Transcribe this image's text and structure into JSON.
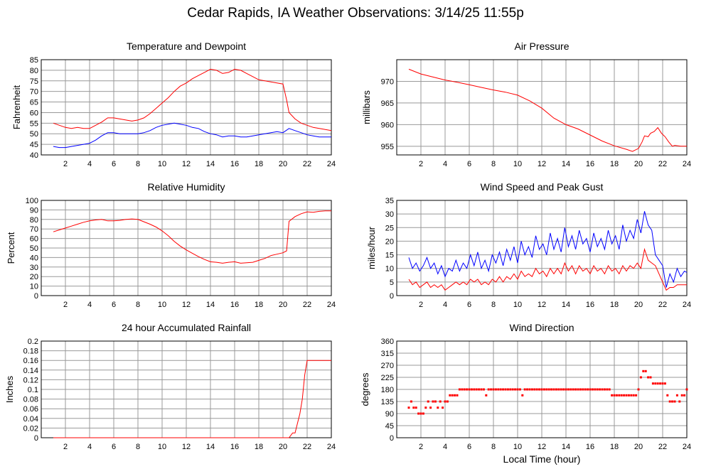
{
  "title": "Cedar Rapids, IA Weather Observations: 3/14/25 11:55p",
  "xlabel": "Local Time (hour)",
  "x_ticks": [
    "2",
    "4",
    "6",
    "8",
    "10",
    "12",
    "14",
    "16",
    "18",
    "20",
    "22",
    "24"
  ],
  "colors": {
    "red": "#ff0000",
    "blue": "#0000ff",
    "grid": "#999999"
  },
  "chart_data": [
    {
      "type": "line",
      "title": "Temperature and Dewpoint",
      "ylabel": "Fahrenheit",
      "xlim": [
        0,
        24
      ],
      "ylim": [
        40,
        85
      ],
      "yticks": [
        40,
        45,
        50,
        55,
        60,
        65,
        70,
        75,
        80,
        85
      ],
      "grid": true,
      "series": [
        {
          "color": "#ff0000",
          "x": [
            1,
            1.5,
            2,
            2.5,
            3,
            3.5,
            4,
            4.5,
            5,
            5.5,
            6,
            6.5,
            7,
            7.5,
            8,
            8.5,
            9,
            9.5,
            10,
            10.5,
            11,
            11.5,
            12,
            12.5,
            13,
            13.5,
            14,
            14.5,
            15,
            15.5,
            16,
            16.5,
            17,
            17.5,
            18,
            18.5,
            19,
            19.5,
            20,
            20.3,
            20.5,
            21,
            21.5,
            22,
            22.5,
            23,
            23.5,
            24
          ],
          "y": [
            55,
            54,
            53,
            52.5,
            53,
            52.5,
            52.5,
            54,
            55.5,
            57.5,
            57.5,
            57,
            56.5,
            56,
            56.5,
            57.5,
            59.5,
            62,
            64.5,
            67,
            70,
            72.5,
            74,
            76,
            77.5,
            79,
            80.5,
            80,
            78.5,
            79,
            80.5,
            80,
            78.5,
            77,
            75.5,
            75,
            74.5,
            74,
            73.5,
            66,
            60,
            57,
            55,
            54,
            53,
            52.5,
            52,
            51.5
          ]
        },
        {
          "color": "#0000ff",
          "x": [
            1,
            1.5,
            2,
            2.5,
            3,
            3.5,
            4,
            4.5,
            5,
            5.5,
            6,
            6.5,
            7,
            7.5,
            8,
            8.5,
            9,
            9.5,
            10,
            10.5,
            11,
            11.5,
            12,
            12.5,
            13,
            13.5,
            14,
            14.5,
            15,
            15.5,
            16,
            16.5,
            17,
            17.5,
            18,
            18.5,
            19,
            19.5,
            20,
            20.5,
            21,
            21.5,
            22,
            22.5,
            23,
            23.5,
            24
          ],
          "y": [
            44,
            43.5,
            43.5,
            44,
            44.5,
            45,
            45.5,
            47,
            49,
            50.5,
            50.5,
            50,
            50,
            50,
            50,
            50.5,
            51.5,
            53,
            54,
            54.5,
            55,
            54.5,
            54,
            53,
            52.5,
            51,
            50,
            49.5,
            48.5,
            49,
            49,
            48.5,
            48.5,
            49,
            49.5,
            50,
            50.5,
            51,
            50.5,
            52.5,
            51.5,
            50.5,
            49.5,
            49,
            48.5,
            48.5,
            48.5
          ]
        }
      ]
    },
    {
      "type": "line",
      "title": "Air Pressure",
      "ylabel": "millibars",
      "xlim": [
        0,
        24
      ],
      "ylim": [
        953,
        975
      ],
      "yticks": [
        955,
        960,
        965,
        970
      ],
      "grid": true,
      "series": [
        {
          "color": "#ff0000",
          "x": [
            1,
            2,
            3,
            4,
            5,
            6,
            7,
            8,
            9,
            10,
            11,
            12,
            13,
            14,
            15,
            16,
            17,
            18,
            19,
            19.5,
            20,
            20.3,
            20.5,
            20.8,
            21,
            21.3,
            21.6,
            21.9,
            22.2,
            22.5,
            22.8,
            23,
            23.5,
            24
          ],
          "y": [
            972.8,
            971.7,
            971,
            970.3,
            969.8,
            969.2,
            968.6,
            968,
            967.5,
            966.8,
            965.5,
            963.8,
            961.5,
            960,
            959,
            957.6,
            956.2,
            955.1,
            954.3,
            953.8,
            954.5,
            956,
            957.4,
            957.2,
            958,
            958.4,
            959.3,
            958,
            957.2,
            956,
            955,
            955.2,
            955,
            955
          ]
        }
      ]
    },
    {
      "type": "line",
      "title": "Relative Humidity",
      "ylabel": "Percent",
      "xlim": [
        0,
        24
      ],
      "ylim": [
        0,
        100
      ],
      "yticks": [
        0,
        10,
        20,
        30,
        40,
        50,
        60,
        70,
        80,
        90,
        100
      ],
      "grid": true,
      "series": [
        {
          "color": "#ff0000",
          "x": [
            1,
            1.5,
            2,
            2.5,
            3,
            3.5,
            4,
            4.5,
            5,
            5.5,
            6,
            6.5,
            7,
            7.5,
            8,
            8.5,
            9,
            9.5,
            10,
            10.5,
            11,
            11.5,
            12,
            12.5,
            13,
            13.5,
            14,
            14.5,
            15,
            15.5,
            16,
            16.5,
            17,
            17.5,
            18,
            18.5,
            19,
            19.5,
            20,
            20.3,
            20.5,
            21,
            21.5,
            22,
            22.5,
            23,
            23.5,
            24
          ],
          "y": [
            67,
            69,
            71,
            73,
            75,
            77,
            78.5,
            79.5,
            80,
            78.5,
            78.5,
            79,
            80,
            80.5,
            80,
            77.5,
            75,
            72,
            68,
            63,
            57,
            52,
            48,
            44.5,
            41,
            38,
            35.5,
            35,
            34,
            35,
            35.5,
            34,
            34.5,
            35,
            37,
            39,
            42,
            43.5,
            45,
            47,
            78,
            83,
            86,
            88,
            87.5,
            88.5,
            89,
            89
          ]
        }
      ]
    },
    {
      "type": "line",
      "title": "Wind Speed and Peak Gust",
      "ylabel": "miles/hour",
      "xlim": [
        0,
        24
      ],
      "ylim": [
        0,
        35
      ],
      "yticks": [
        0,
        5,
        10,
        15,
        20,
        25,
        30,
        35
      ],
      "grid": true,
      "series": [
        {
          "color": "#0000ff",
          "x": [
            1,
            1.3,
            1.6,
            1.9,
            2.2,
            2.5,
            2.8,
            3.1,
            3.4,
            3.7,
            4,
            4.3,
            4.6,
            4.9,
            5.2,
            5.5,
            5.8,
            6.1,
            6.4,
            6.7,
            7,
            7.3,
            7.6,
            7.9,
            8.2,
            8.5,
            8.8,
            9.1,
            9.4,
            9.7,
            10,
            10.3,
            10.6,
            10.9,
            11.2,
            11.5,
            11.8,
            12.1,
            12.4,
            12.7,
            13,
            13.3,
            13.6,
            13.9,
            14.2,
            14.5,
            14.8,
            15.1,
            15.4,
            15.7,
            16,
            16.3,
            16.6,
            16.9,
            17.2,
            17.5,
            17.8,
            18.1,
            18.4,
            18.7,
            19,
            19.3,
            19.6,
            19.9,
            20.2,
            20.5,
            20.8,
            21.1,
            21.4,
            21.7,
            22,
            22.3,
            22.6,
            22.9,
            23.2,
            23.5,
            23.8,
            24
          ],
          "y": [
            14,
            10,
            12,
            9,
            11,
            14,
            10,
            12,
            8,
            11,
            7,
            10,
            9,
            13,
            9,
            12,
            10,
            15,
            11,
            16,
            10,
            13,
            9,
            15,
            12,
            16,
            11,
            17,
            13,
            18,
            12,
            20,
            15,
            18,
            14,
            22,
            17,
            19,
            15,
            23,
            17,
            21,
            16,
            25,
            18,
            22,
            17,
            24,
            19,
            21,
            16,
            23,
            18,
            21,
            17,
            24,
            19,
            22,
            17,
            26,
            20,
            24,
            21,
            28,
            23,
            31,
            26,
            24,
            15,
            13,
            11,
            3,
            8,
            5,
            10,
            7,
            9,
            8.5
          ]
        },
        {
          "color": "#ff0000",
          "x": [
            1,
            1.3,
            1.6,
            1.9,
            2.2,
            2.5,
            2.8,
            3.1,
            3.4,
            3.7,
            4,
            4.3,
            4.6,
            4.9,
            5.2,
            5.5,
            5.8,
            6.1,
            6.4,
            6.7,
            7,
            7.3,
            7.6,
            7.9,
            8.2,
            8.5,
            8.8,
            9.1,
            9.4,
            9.7,
            10,
            10.3,
            10.6,
            10.9,
            11.2,
            11.5,
            11.8,
            12.1,
            12.4,
            12.7,
            13,
            13.3,
            13.6,
            13.9,
            14.2,
            14.5,
            14.8,
            15.1,
            15.4,
            15.7,
            16,
            16.3,
            16.6,
            16.9,
            17.2,
            17.5,
            17.8,
            18.1,
            18.4,
            18.7,
            19,
            19.3,
            19.6,
            19.9,
            20.2,
            20.5,
            20.8,
            21.1,
            21.4,
            21.7,
            22,
            22.3,
            22.6,
            22.9,
            23.2,
            23.5,
            23.8,
            24
          ],
          "y": [
            6,
            4,
            5,
            3,
            4,
            5,
            3,
            4,
            3,
            4,
            2,
            3,
            4,
            5,
            4,
            5,
            4,
            6,
            5,
            6,
            4,
            5,
            4,
            6,
            5,
            7,
            5,
            7,
            6,
            8,
            6,
            9,
            7,
            8,
            7,
            10,
            8,
            9,
            7,
            10,
            8,
            10,
            8,
            12,
            9,
            11,
            8,
            11,
            9,
            10,
            8,
            11,
            9,
            10,
            8,
            11,
            9,
            10,
            8,
            11,
            9,
            11,
            10,
            12,
            10,
            17,
            13,
            12,
            11,
            8,
            5,
            2,
            3,
            3,
            4,
            4,
            4,
            4
          ]
        }
      ]
    },
    {
      "type": "line",
      "title": "24 hour Accumulated Rainfall",
      "ylabel": "Inches",
      "xlim": [
        0,
        24
      ],
      "ylim": [
        0,
        0.2
      ],
      "yticks": [
        0.0,
        0.02,
        0.04,
        0.06,
        0.08,
        0.1,
        0.12,
        0.14,
        0.16,
        0.18,
        0.2
      ],
      "grid": true,
      "series": [
        {
          "color": "#ff0000",
          "x": [
            1,
            20.5,
            20.8,
            21,
            21.2,
            21.4,
            21.6,
            21.8,
            22,
            23,
            24
          ],
          "y": [
            0,
            0,
            0.01,
            0.01,
            0.03,
            0.05,
            0.08,
            0.13,
            0.16,
            0.16,
            0.16
          ]
        }
      ]
    },
    {
      "type": "scatter",
      "title": "Wind Direction",
      "ylabel": "degrees",
      "xlim": [
        0,
        24
      ],
      "ylim": [
        0,
        360
      ],
      "yticks": [
        0,
        45,
        90,
        135,
        180,
        225,
        270,
        315,
        360
      ],
      "grid": true,
      "series": [
        {
          "color": "#ff0000",
          "x": [
            1,
            1.2,
            1.4,
            1.6,
            1.8,
            2,
            2.2,
            2.4,
            2.6,
            2.8,
            3,
            3.2,
            3.4,
            3.6,
            3.8,
            4,
            4.2,
            4.4,
            4.6,
            4.8,
            5,
            5.2,
            5.4,
            5.6,
            5.8,
            6,
            6.2,
            6.4,
            6.6,
            6.8,
            7,
            7.2,
            7.4,
            7.6,
            7.8,
            8,
            8.2,
            8.4,
            8.6,
            8.8,
            9,
            9.2,
            9.4,
            9.6,
            9.8,
            10,
            10.2,
            10.4,
            10.6,
            10.8,
            11,
            11.2,
            11.4,
            11.6,
            11.8,
            12,
            12.2,
            12.4,
            12.6,
            12.8,
            13,
            13.2,
            13.4,
            13.6,
            13.8,
            14,
            14.2,
            14.4,
            14.6,
            14.8,
            15,
            15.2,
            15.4,
            15.6,
            15.8,
            16,
            16.2,
            16.4,
            16.6,
            16.8,
            17,
            17.2,
            17.4,
            17.6,
            17.8,
            18,
            18.2,
            18.4,
            18.6,
            18.8,
            19,
            19.2,
            19.4,
            19.6,
            19.8,
            20,
            20.2,
            20.4,
            20.6,
            20.8,
            21,
            21.2,
            21.4,
            21.6,
            21.8,
            22,
            22.2,
            22.4,
            22.6,
            22.8,
            23,
            23.2,
            23.4,
            23.6,
            23.8,
            24
          ],
          "y": [
            112,
            135,
            112,
            112,
            90,
            90,
            90,
            112,
            135,
            112,
            135,
            135,
            112,
            135,
            112,
            135,
            135,
            158,
            158,
            158,
            158,
            180,
            180,
            180,
            180,
            180,
            180,
            180,
            180,
            180,
            180,
            180,
            158,
            180,
            180,
            180,
            180,
            180,
            180,
            180,
            180,
            180,
            180,
            180,
            180,
            180,
            180,
            158,
            180,
            180,
            180,
            180,
            180,
            180,
            180,
            180,
            180,
            180,
            180,
            180,
            180,
            180,
            180,
            180,
            180,
            180,
            180,
            180,
            180,
            180,
            180,
            180,
            180,
            180,
            180,
            180,
            180,
            180,
            180,
            180,
            180,
            180,
            180,
            180,
            158,
            158,
            158,
            158,
            158,
            158,
            158,
            158,
            158,
            158,
            158,
            180,
            225,
            248,
            248,
            225,
            225,
            202,
            202,
            202,
            202,
            202,
            202,
            158,
            135,
            135,
            135,
            158,
            135,
            158,
            158,
            180
          ]
        }
      ]
    }
  ]
}
